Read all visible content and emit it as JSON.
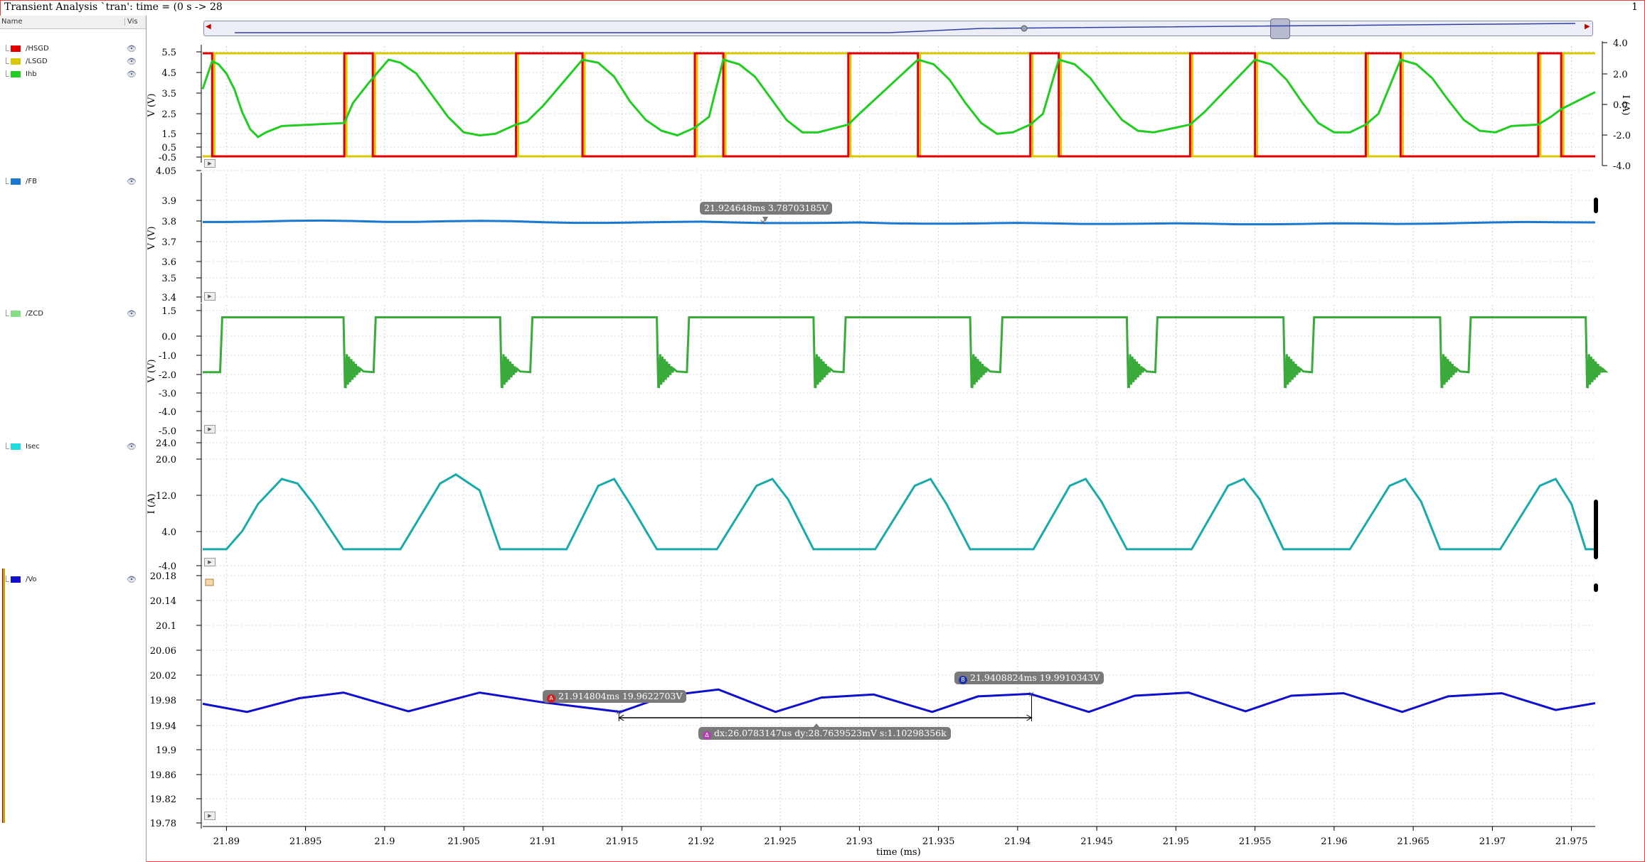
{
  "window": {
    "title": "Transient Analysis `tran': time = (0 s -> 28",
    "corner_number": "1"
  },
  "legend_header": {
    "name": "Name",
    "vis": "Vis"
  },
  "legend": [
    {
      "label": "/HSGD",
      "color": "#e00000",
      "icon": "eye-icon"
    },
    {
      "label": "/LSGD",
      "color": "#d8c800",
      "icon": "eye-icon"
    },
    {
      "label": "Ihb",
      "color": "#22cc22",
      "icon": "eye-icon"
    },
    {
      "label": "/FB",
      "color": "#1a78d0",
      "icon": "eye-icon"
    },
    {
      "label": "/ZCD",
      "color": "#88dd88",
      "icon": "eye-icon"
    },
    {
      "label": "Isec",
      "color": "#22dddd",
      "icon": "eye-icon"
    },
    {
      "label": "/Vo",
      "color": "#1010cc",
      "icon": "eye-icon"
    }
  ],
  "markers": {
    "fb": {
      "text": "21.924648ms 3.78703185V"
    },
    "a": {
      "badge": "A",
      "text": "21.914804ms 19.9622703V"
    },
    "b": {
      "badge": "B",
      "text": "21.9408824ms 19.9910343V"
    },
    "delta": {
      "badge": "Δ",
      "text": "dx:26.0783147us dy:28.7639523mV s:1.10298356k"
    }
  },
  "chart_data": [
    {
      "type": "line",
      "panel": "gate-drive-and-ihb",
      "ylabel": "V (V)",
      "yticks": [
        "5.5",
        "4.5",
        "3.5",
        "2.5",
        "1.5",
        "0.5",
        "-0.5"
      ],
      "ylim": [
        -0.5,
        5.5
      ],
      "y2label": "I (A)",
      "y2ticks": [
        "4.0",
        "2.0",
        "0.0",
        "-2.0",
        "-4.0"
      ],
      "y2lim": [
        -4.0,
        4.0
      ],
      "switch_times_ms": [
        21.8891,
        21.89745,
        21.89925,
        21.9083,
        21.9125,
        21.9196,
        21.9214,
        21.9293,
        21.9337,
        21.9408,
        21.9426,
        21.9509,
        21.955,
        21.962,
        21.9642,
        21.9729,
        21.97435
      ],
      "series": [
        {
          "name": "/HSGD",
          "color": "#e00000",
          "low": 0.0,
          "high": 5.0
        },
        {
          "name": "/LSGD",
          "color": "#d8c800",
          "low": 0.0,
          "high": 5.0
        },
        {
          "name": "Ihb",
          "color": "#22cc22",
          "axis": "right",
          "x": [
            21.8885,
            21.8891,
            21.8895,
            21.89,
            21.8905,
            21.891,
            21.8915,
            21.892,
            21.8925,
            21.893,
            21.8935,
            21.89745,
            21.898,
            21.899,
            21.90025,
            21.901,
            21.902,
            21.903,
            21.904,
            21.905,
            21.906,
            21.907,
            21.9083,
            21.909,
            21.91,
            21.9125,
            21.9135,
            21.9145,
            21.9155,
            21.9165,
            21.9175,
            21.9185,
            21.9196,
            21.9205,
            21.9214,
            21.9224,
            21.9234,
            21.9244,
            21.9254,
            21.9264,
            21.9274,
            21.9293,
            21.93,
            21.9337,
            21.9347,
            21.9357,
            21.9367,
            21.9377,
            21.9387,
            21.9397,
            21.9408,
            21.9416,
            21.9426,
            21.9436,
            21.9446,
            21.9456,
            21.9466,
            21.9476,
            21.9486,
            21.9509,
            21.9518,
            21.955,
            21.956,
            21.957,
            21.958,
            21.959,
            21.96,
            21.961,
            21.962,
            21.9628,
            21.9642,
            21.9652,
            21.9662,
            21.9672,
            21.9682,
            21.9692,
            21.9702,
            21.9712,
            21.9729,
            21.9737,
            21.97435,
            21.9765
          ],
          "y": [
            1.0,
            2.8,
            2.6,
            2.0,
            1.0,
            -0.5,
            -1.6,
            -2.1,
            -1.8,
            -1.6,
            -1.4,
            -1.2,
            0.1,
            1.4,
            2.9,
            2.7,
            2.0,
            0.6,
            -0.8,
            -1.8,
            -2.0,
            -1.9,
            -1.3,
            -1.1,
            -0.1,
            2.9,
            2.7,
            1.8,
            0.2,
            -1.0,
            -1.7,
            -2.0,
            -1.5,
            -0.8,
            2.9,
            2.6,
            1.8,
            0.4,
            -1.0,
            -1.8,
            -1.8,
            -1.3,
            -0.6,
            2.9,
            2.6,
            1.6,
            0.1,
            -1.2,
            -1.9,
            -1.8,
            -1.3,
            -0.6,
            2.9,
            2.6,
            1.7,
            0.3,
            -1.0,
            -1.7,
            -1.8,
            -1.3,
            -0.5,
            2.9,
            2.6,
            1.6,
            0.1,
            -1.2,
            -1.8,
            -1.8,
            -1.3,
            -0.6,
            2.9,
            2.6,
            1.7,
            0.3,
            -1.0,
            -1.7,
            -1.8,
            -1.4,
            -1.3,
            -0.8,
            -0.3,
            0.8
          ]
        }
      ]
    },
    {
      "type": "line",
      "panel": "fb",
      "ylabel": "V (V)",
      "yticks": [
        "4.05",
        "3.9",
        "3.8",
        "3.7",
        "3.6",
        "3.5",
        "3.4"
      ],
      "ylim": [
        3.4,
        4.05
      ],
      "series": [
        {
          "name": "/FB",
          "color": "#1a78d0",
          "x": [
            21.8885,
            21.89,
            21.892,
            21.894,
            21.896,
            21.898,
            21.9,
            21.902,
            21.904,
            21.906,
            21.908,
            21.91,
            21.912,
            21.914,
            21.916,
            21.918,
            21.92,
            21.922,
            21.924,
            21.926,
            21.928,
            21.93,
            21.932,
            21.934,
            21.936,
            21.938,
            21.94,
            21.942,
            21.944,
            21.946,
            21.948,
            21.95,
            21.952,
            21.954,
            21.956,
            21.958,
            21.96,
            21.962,
            21.964,
            21.966,
            21.968,
            21.97,
            21.972,
            21.974,
            21.9765
          ],
          "y": [
            3.795,
            3.795,
            3.797,
            3.801,
            3.802,
            3.8,
            3.796,
            3.796,
            3.799,
            3.801,
            3.799,
            3.794,
            3.791,
            3.791,
            3.793,
            3.795,
            3.797,
            3.793,
            3.79,
            3.79,
            3.791,
            3.793,
            3.789,
            3.787,
            3.787,
            3.789,
            3.791,
            3.789,
            3.786,
            3.786,
            3.787,
            3.789,
            3.787,
            3.784,
            3.784,
            3.786,
            3.789,
            3.788,
            3.786,
            3.787,
            3.79,
            3.793,
            3.795,
            3.794,
            3.793
          ]
        }
      ]
    },
    {
      "type": "line",
      "panel": "zcd",
      "ylabel": "V (V)",
      "yticks": [
        "1.5",
        "0.0",
        "-1.0",
        "-2.0",
        "-3.0",
        "-4.0",
        "-5.0"
      ],
      "ylim": [
        -5.0,
        1.5
      ],
      "series": [
        {
          "name": "/ZCD",
          "color": "#3aaa3a",
          "high": 1.0,
          "low": -1.8,
          "ring_min": -2.7,
          "ring_max": -0.7,
          "rise_times_ms": [
            21.8896,
            21.8993,
            21.9092,
            21.9191,
            21.929,
            21.9389,
            21.9487,
            21.9586,
            21.9685
          ],
          "fall_times_ms": [
            21.8974,
            21.9073,
            21.9172,
            21.9271,
            21.937,
            21.9469,
            21.9568,
            21.9667,
            21.9759
          ]
        }
      ]
    },
    {
      "type": "line",
      "panel": "isec",
      "ylabel": "I (A)",
      "yticks": [
        "24.0",
        "20.0",
        "12.0",
        "4.0",
        "-4.0"
      ],
      "ylim": [
        -4.0,
        24.0
      ],
      "series": [
        {
          "name": "Isec",
          "color": "#1aaaaa",
          "x": [
            21.8885,
            21.89,
            21.891,
            21.892,
            21.8935,
            21.8945,
            21.8955,
            21.8974,
            21.8977,
            21.8995,
            21.901,
            21.9035,
            21.9045,
            21.906,
            21.9073,
            21.9076,
            21.91,
            21.9115,
            21.9135,
            21.9145,
            21.9155,
            21.9172,
            21.9175,
            21.9195,
            21.921,
            21.9235,
            21.9245,
            21.9255,
            21.9271,
            21.9274,
            21.9295,
            21.931,
            21.9335,
            21.9345,
            21.9355,
            21.937,
            21.9373,
            21.9395,
            21.941,
            21.9433,
            21.9443,
            21.9453,
            21.9469,
            21.9472,
            21.9495,
            21.951,
            21.9533,
            21.9543,
            21.9553,
            21.9568,
            21.9571,
            21.9595,
            21.961,
            21.9635,
            21.9645,
            21.9655,
            21.9667,
            21.967,
            21.97,
            21.9705,
            21.973,
            21.974,
            21.975,
            21.9759,
            21.9762,
            21.9765
          ],
          "y": [
            0.0,
            0.0,
            4.0,
            10.0,
            15.5,
            14.5,
            10.0,
            0.0,
            0.0,
            0.0,
            0.0,
            14.5,
            16.5,
            13.0,
            0.0,
            0.0,
            0.0,
            0.0,
            14.0,
            15.5,
            10.0,
            0.0,
            0.0,
            0.0,
            0.0,
            14.0,
            15.5,
            11.0,
            0.0,
            0.0,
            0.0,
            0.0,
            14.0,
            15.5,
            10.0,
            0.0,
            0.0,
            0.0,
            0.0,
            14.0,
            15.5,
            10.5,
            0.0,
            0.0,
            0.0,
            0.0,
            14.0,
            15.5,
            11.0,
            0.0,
            0.0,
            0.0,
            0.0,
            14.0,
            15.5,
            10.5,
            0.0,
            0.0,
            0.0,
            0.0,
            14.0,
            15.5,
            10.0,
            0.0,
            0.0,
            0.0
          ]
        }
      ]
    },
    {
      "type": "line",
      "panel": "vo",
      "ylabel": "",
      "yticks": [
        "20.18",
        "20.14",
        "20.1",
        "20.06",
        "20.02",
        "19.98",
        "19.94",
        "19.9",
        "19.86",
        "19.82",
        "19.78"
      ],
      "ylim": [
        19.78,
        20.18
      ],
      "xlabel": "time (ms)",
      "xticks": [
        "21.89",
        "21.895",
        "21.9",
        "21.905",
        "21.91",
        "21.915",
        "21.92",
        "21.925",
        "21.93",
        "21.935",
        "21.94",
        "21.945",
        "21.95",
        "21.955",
        "21.96",
        "21.965",
        "21.97",
        "21.975"
      ],
      "xlim": [
        21.8885,
        21.9765
      ],
      "series": [
        {
          "name": "/Vo",
          "color": "#1010cc",
          "x": [
            21.8885,
            21.8913,
            21.8946,
            21.8974,
            21.9015,
            21.906,
            21.9098,
            21.9149,
            21.9178,
            21.9211,
            21.9247,
            21.9276,
            21.9309,
            21.9346,
            21.9375,
            21.9408,
            21.9445,
            21.9474,
            21.9508,
            21.9544,
            21.9573,
            21.9606,
            21.9643,
            21.9672,
            21.9706,
            21.974,
            21.9765
          ],
          "y": [
            19.975,
            19.962,
            19.984,
            19.993,
            19.963,
            19.993,
            19.978,
            19.962,
            19.988,
            19.998,
            19.962,
            19.985,
            19.99,
            19.962,
            19.987,
            19.991,
            19.962,
            19.988,
            19.993,
            19.963,
            19.988,
            19.992,
            19.962,
            19.987,
            19.992,
            19.965,
            19.976
          ]
        }
      ]
    }
  ]
}
